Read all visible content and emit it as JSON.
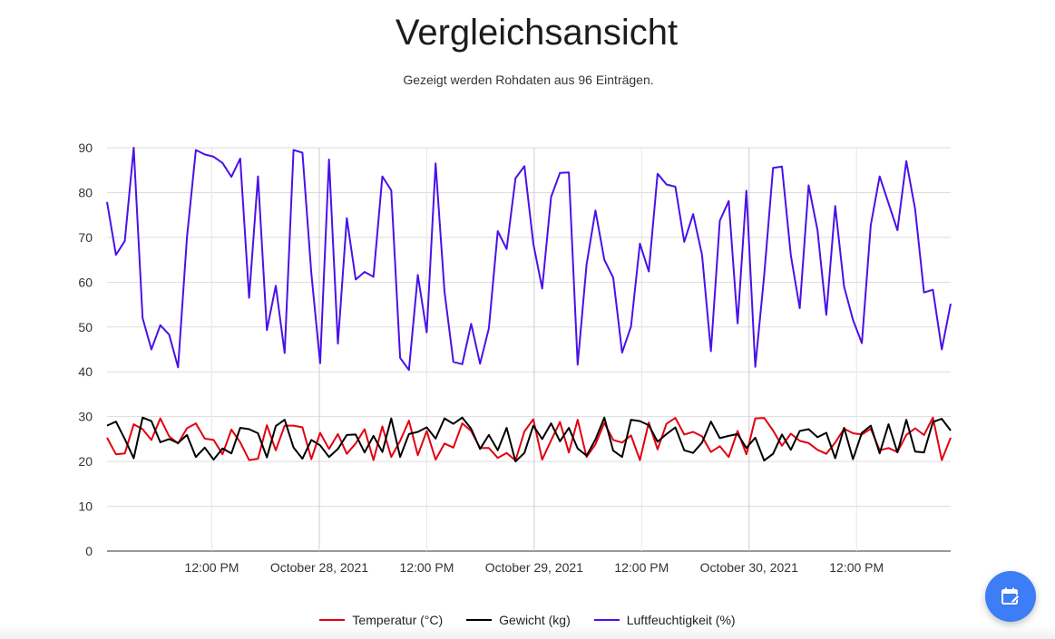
{
  "header": {
    "title": "Vergleichsansicht",
    "subtitle": "Gezeigt werden Rohdaten aus 96 Einträgen."
  },
  "fab": {
    "icon": "calendar-edit-icon",
    "color": "#3d7df5"
  },
  "chart_data": {
    "type": "line",
    "title": "Vergleichsansicht",
    "xlabel": "",
    "ylabel": "",
    "ylim": [
      0,
      90
    ],
    "y_ticks": [
      0,
      10,
      20,
      30,
      40,
      50,
      60,
      70,
      80,
      90
    ],
    "x_tick_labels": [
      "12:00 PM",
      "October 28, 2021",
      "12:00 PM",
      "October 29, 2021",
      "12:00 PM",
      "October 30, 2021",
      "12:00 PM"
    ],
    "x_tick_indices": [
      11.8,
      23.9,
      36,
      48.1,
      60.2,
      72.3,
      84.4
    ],
    "grid": true,
    "legend_position": "bottom",
    "series": [
      {
        "name": "Temperatur (°C)",
        "color": "#e3000f",
        "values": [
          25.3,
          21.6,
          21.8,
          28.3,
          27.2,
          24.8,
          29.6,
          25.6,
          24.0,
          27.4,
          28.5,
          25.1,
          24.8,
          21.6,
          27.1,
          24.3,
          20.3,
          20.6,
          28.1,
          22.5,
          28.0,
          28.0,
          27.6,
          20.5,
          26.4,
          22.8,
          26.1,
          21.7,
          24.0,
          27.2,
          20.3,
          27.8,
          21.0,
          24.6,
          29.1,
          21.4,
          26.8,
          20.4,
          24.0,
          23.1,
          28.5,
          26.8,
          23.0,
          23.0,
          20.8,
          21.9,
          20.2,
          26.7,
          29.4,
          20.4,
          24.7,
          28.8,
          22.0,
          29.3,
          21.0,
          23.8,
          28.6,
          24.8,
          24.2,
          25.8,
          20.3,
          28.7,
          22.7,
          28.4,
          29.7,
          26.0,
          26.6,
          25.6,
          22.1,
          23.4,
          21.0,
          26.8,
          21.6,
          29.6,
          29.7,
          26.9,
          23.5,
          26.2,
          24.6,
          24.1,
          22.6,
          21.7,
          24.2,
          27.3,
          26.3,
          26.0,
          27.3,
          22.5,
          23.0,
          22.1,
          25.9,
          27.4,
          25.9,
          29.8,
          20.3,
          25.3
        ]
      },
      {
        "name": "Gewicht (kg)",
        "color": "#000000",
        "values": [
          28.0,
          28.9,
          25.0,
          20.7,
          29.8,
          29.0,
          24.3,
          25.0,
          24.1,
          25.9,
          21.0,
          23.1,
          20.4,
          22.9,
          21.8,
          27.5,
          27.2,
          26.3,
          20.9,
          27.9,
          29.3,
          23.1,
          20.6,
          24.8,
          23.6,
          21.0,
          22.8,
          25.9,
          26.0,
          22.0,
          25.7,
          22.1,
          29.6,
          21.0,
          26.1,
          26.6,
          27.6,
          25.1,
          29.6,
          28.4,
          29.8,
          27.3,
          22.8,
          25.9,
          22.5,
          27.5,
          20.0,
          21.9,
          28.0,
          25.0,
          28.5,
          24.5,
          27.5,
          22.9,
          21.3,
          24.9,
          29.8,
          22.4,
          21.0,
          29.3,
          29.0,
          28.1,
          24.4,
          26.1,
          27.6,
          22.5,
          21.9,
          24.2,
          28.9,
          25.2,
          25.7,
          26.1,
          23.0,
          25.3,
          20.2,
          21.7,
          26.0,
          22.6,
          26.8,
          27.2,
          25.4,
          26.4,
          20.7,
          27.5,
          20.5,
          26.4,
          28.0,
          21.8,
          28.3,
          22.0,
          29.3,
          22.2,
          22.0,
          28.8,
          29.5,
          26.9
        ]
      },
      {
        "name": "Luftfeuchtigkeit (%)",
        "color": "#4a11e8",
        "values": [
          77.9,
          66.1,
          69.2,
          90.0,
          52.0,
          45.0,
          50.4,
          48.3,
          41.0,
          70.0,
          89.5,
          88.5,
          88.0,
          86.6,
          83.5,
          87.6,
          56.5,
          83.6,
          49.3,
          59.2,
          44.2,
          89.5,
          88.9,
          62.0,
          41.9,
          87.4,
          46.3,
          74.3,
          60.6,
          62.3,
          61.2,
          83.6,
          80.5,
          43.1,
          40.4,
          61.6,
          48.8,
          86.5,
          57.9,
          42.2,
          41.7,
          50.7,
          41.8,
          49.7,
          71.4,
          67.4,
          83.2,
          85.9,
          68.6,
          58.6,
          79.0,
          84.4,
          84.5,
          41.6,
          63.9,
          76.0,
          65.0,
          61.0,
          44.3,
          50.1,
          68.6,
          62.4,
          84.2,
          81.8,
          81.3,
          69.0,
          75.2,
          66.1,
          44.6,
          73.7,
          78.1,
          50.8,
          80.4,
          41.1,
          61.5,
          85.5,
          85.8,
          66.0,
          54.2,
          81.6,
          71.6,
          52.7,
          77.0,
          59.0,
          51.6,
          46.4,
          72.7,
          83.6,
          77.6,
          71.6,
          87.0,
          76.3,
          57.7,
          58.3,
          45.0,
          55.2
        ]
      }
    ]
  }
}
